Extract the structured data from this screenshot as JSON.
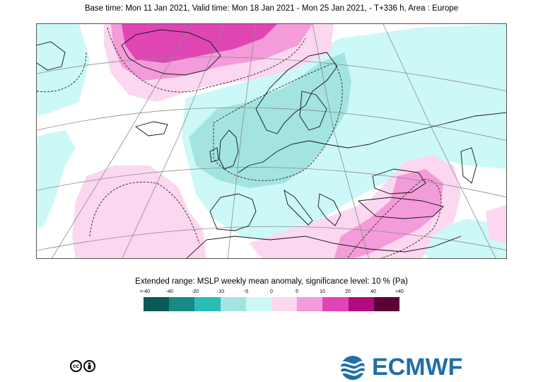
{
  "header": {
    "title": "Base time: Mon 11 Jan 2021, Valid time: Mon 18 Jan 2021 - Mon 25 Jan 2021, - T+336 h, Area : Europe"
  },
  "legend": {
    "title": "Extended range: MSLP weekly mean anomaly, significance level: 10 % (Pa)",
    "ticks": [
      "<-40",
      "-40",
      "-20",
      "-10",
      "-5",
      "0",
      "5",
      "10",
      "20",
      "40",
      ">40"
    ],
    "colors": [
      "#0c5a57",
      "#178a85",
      "#2cbcb7",
      "#a3e4e1",
      "#cdf8f8",
      "#fcd7f0",
      "#f49bd9",
      "#e045b4",
      "#b30a7f",
      "#5c0038"
    ]
  },
  "colors": {
    "land_lines": "#111111",
    "grid_lines": "#8c8c8c",
    "brand_blue": "#1f6fa8"
  },
  "footer": {
    "license_icons": [
      "cc-icon",
      "person-icon"
    ],
    "brand": "ECMWF"
  }
}
